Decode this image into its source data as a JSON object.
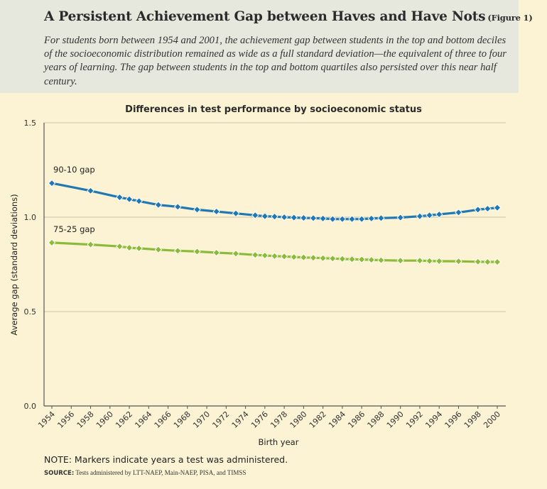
{
  "header": {
    "title": "A Persistent Achievement Gap between Haves and Have Nots",
    "figure_label": "(Figure 1)",
    "subtitle": "For students born between 1954 and 2001, the achievement gap between students in the top and bottom deciles of the socioeconomic distribution remained as wide as a full standard deviation—the equivalent of three to four years of learning. The gap between students in the top and bottom quartiles also persisted over this near half century."
  },
  "footer": {
    "note": "NOTE: Markers indicate years a test was administered.",
    "source_label": "SOURCE:",
    "source_text": "Tests administered by LTT-NAEP, Main-NAEP, PISA, and TIMSS"
  },
  "colors": {
    "header_bg": "#e6e7dd",
    "page_bg": "#fbf3d4",
    "series_90_10": "#1f78b4",
    "series_75_25": "#8cbb3a"
  },
  "chart_data": {
    "type": "line",
    "title": "Differences in test performance by socioeconomic status",
    "xlabel": "Birth year",
    "ylabel": "Average gap (standard deviations)",
    "xlim": [
      1954,
      2000
    ],
    "ylim": [
      0.0,
      1.5
    ],
    "x_ticks": [
      "1954",
      "1956",
      "1958",
      "1960",
      "1962",
      "1964",
      "1966",
      "1968",
      "1970",
      "1972",
      "1974",
      "1976",
      "1978",
      "1980",
      "1982",
      "1984",
      "1986",
      "1988",
      "1990",
      "1992",
      "1994",
      "1996",
      "1998",
      "2000"
    ],
    "y_ticks": [
      "0.0",
      "0.5",
      "1.0",
      "1.5"
    ],
    "grid": "horizontal",
    "series": [
      {
        "name": "90-10 gap",
        "color": "#1f78b4",
        "x": [
          1954,
          1958,
          1961,
          1962,
          1963,
          1965,
          1967,
          1969,
          1971,
          1973,
          1975,
          1976,
          1977,
          1978,
          1979,
          1980,
          1981,
          1982,
          1983,
          1984,
          1985,
          1986,
          1987,
          1988,
          1990,
          1992,
          1993,
          1994,
          1996,
          1998,
          1999,
          2000
        ],
        "y": [
          1.18,
          1.14,
          1.105,
          1.095,
          1.085,
          1.065,
          1.055,
          1.04,
          1.03,
          1.02,
          1.01,
          1.005,
          1.003,
          1.0,
          0.998,
          0.996,
          0.995,
          0.993,
          0.99,
          0.99,
          0.99,
          0.99,
          0.993,
          0.995,
          0.998,
          1.005,
          1.01,
          1.015,
          1.025,
          1.04,
          1.045,
          1.05
        ]
      },
      {
        "name": "75-25 gap",
        "color": "#8cbb3a",
        "x": [
          1954,
          1958,
          1961,
          1962,
          1963,
          1965,
          1967,
          1969,
          1971,
          1973,
          1975,
          1976,
          1977,
          1978,
          1979,
          1980,
          1981,
          1982,
          1983,
          1984,
          1985,
          1986,
          1987,
          1988,
          1990,
          1992,
          1993,
          1994,
          1996,
          1998,
          1999,
          2000
        ],
        "y": [
          0.865,
          0.855,
          0.845,
          0.838,
          0.835,
          0.828,
          0.822,
          0.818,
          0.812,
          0.807,
          0.8,
          0.797,
          0.794,
          0.792,
          0.789,
          0.787,
          0.785,
          0.783,
          0.781,
          0.779,
          0.777,
          0.776,
          0.774,
          0.772,
          0.77,
          0.77,
          0.768,
          0.767,
          0.766,
          0.764,
          0.763,
          0.763
        ]
      }
    ]
  }
}
